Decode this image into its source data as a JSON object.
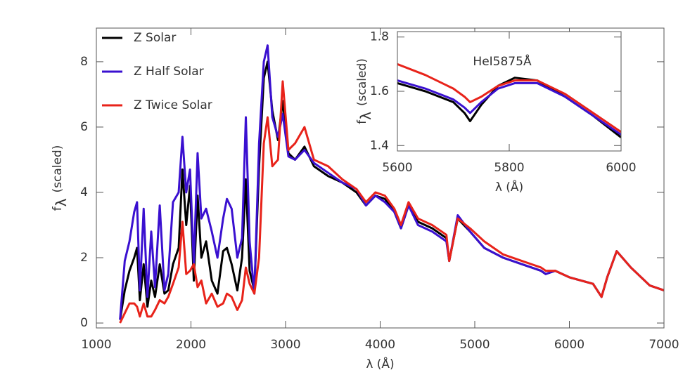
{
  "chart_data": [
    {
      "type": "line",
      "x_label": "λ (Å)",
      "y_label": {
        "symbol": "f",
        "subscript": "λ",
        "text": "(scaled)"
      },
      "xlim": [
        1000,
        7000
      ],
      "xticks": [
        1000,
        2000,
        3000,
        4000,
        5000,
        6000,
        7000
      ],
      "ylim": [
        -0.15,
        9.03
      ],
      "yticks": [
        0,
        2,
        4,
        6,
        8
      ],
      "legend": "upper left",
      "x": [
        1250,
        1300,
        1350,
        1400,
        1430,
        1460,
        1500,
        1540,
        1580,
        1620,
        1670,
        1720,
        1760,
        1810,
        1870,
        1910,
        1950,
        1990,
        2030,
        2070,
        2110,
        2160,
        2220,
        2280,
        2340,
        2380,
        2430,
        2490,
        2540,
        2580,
        2620,
        2670,
        2720,
        2770,
        2810,
        2860,
        2920,
        2970,
        3030,
        3100,
        3200,
        3300,
        3450,
        3600,
        3750,
        3850,
        3950,
        4050,
        4150,
        4220,
        4300,
        4400,
        4550,
        4700,
        4730,
        4820,
        4950,
        5100,
        5300,
        5500,
        5700,
        5750,
        5850,
        6000,
        6250,
        6340,
        6400,
        6500,
        6650,
        6850,
        7000
      ],
      "series": [
        {
          "name": "Z Solar",
          "color": "#000000",
          "values": [
            0.1,
            1.0,
            1.6,
            2.0,
            2.3,
            0.7,
            1.8,
            0.5,
            1.3,
            0.8,
            1.8,
            0.9,
            1.0,
            1.8,
            2.3,
            4.7,
            3.0,
            4.2,
            1.3,
            3.9,
            2.0,
            2.5,
            1.3,
            0.9,
            2.2,
            2.3,
            1.8,
            1.0,
            2.0,
            4.4,
            1.6,
            1.0,
            4.8,
            7.5,
            8.0,
            6.5,
            5.6,
            6.8,
            5.2,
            5.0,
            5.4,
            4.8,
            4.5,
            4.3,
            4.0,
            3.6,
            3.9,
            3.8,
            3.4,
            2.9,
            3.6,
            3.1,
            2.9,
            2.6,
            1.9,
            3.2,
            2.8,
            2.3,
            2.0,
            1.8,
            1.6,
            1.5,
            1.6,
            1.4,
            1.2,
            0.8,
            1.4,
            2.2,
            1.7,
            1.15,
            1.0
          ]
        },
        {
          "name": "Z Half Solar",
          "color": "#3a10d0",
          "values": [
            0.1,
            1.9,
            2.5,
            3.4,
            3.7,
            1.0,
            3.5,
            0.8,
            2.8,
            1.1,
            3.6,
            1.0,
            1.5,
            3.7,
            4.0,
            5.7,
            4.0,
            4.7,
            1.8,
            5.2,
            3.2,
            3.5,
            2.8,
            2.0,
            3.2,
            3.8,
            3.5,
            2.0,
            2.6,
            6.3,
            2.5,
            0.9,
            5.5,
            8.0,
            8.5,
            6.3,
            5.7,
            6.4,
            5.1,
            5.0,
            5.3,
            4.9,
            4.6,
            4.3,
            4.1,
            3.6,
            3.9,
            3.7,
            3.4,
            2.9,
            3.6,
            3.0,
            2.8,
            2.5,
            1.9,
            3.3,
            2.8,
            2.3,
            2.0,
            1.8,
            1.6,
            1.5,
            1.6,
            1.4,
            1.2,
            0.8,
            1.4,
            2.2,
            1.7,
            1.15,
            1.0
          ]
        },
        {
          "name": "Z Twice Solar",
          "color": "#e8231a",
          "values": [
            0.0,
            0.3,
            0.6,
            0.6,
            0.5,
            0.2,
            0.6,
            0.2,
            0.2,
            0.4,
            0.7,
            0.6,
            0.8,
            1.2,
            1.7,
            3.1,
            1.5,
            1.6,
            1.8,
            1.1,
            1.3,
            0.6,
            0.9,
            0.5,
            0.6,
            0.9,
            0.8,
            0.4,
            0.7,
            1.7,
            1.2,
            0.9,
            2.0,
            5.5,
            6.3,
            4.8,
            5.0,
            7.4,
            5.3,
            5.5,
            6.0,
            5.0,
            4.8,
            4.4,
            4.1,
            3.7,
            4.0,
            3.9,
            3.5,
            3.0,
            3.7,
            3.2,
            3.0,
            2.7,
            1.9,
            3.2,
            2.9,
            2.5,
            2.1,
            1.9,
            1.7,
            1.6,
            1.6,
            1.4,
            1.2,
            0.8,
            1.4,
            2.2,
            1.7,
            1.15,
            1.0
          ]
        }
      ]
    },
    {
      "type": "line",
      "x_label": "λ (Å)",
      "y_label": {
        "symbol": "f",
        "subscript": "λ",
        "text": "(scaled)"
      },
      "annotation": "HeI5875Å",
      "xlim": [
        5600,
        6000
      ],
      "xticks": [
        5600,
        5800,
        6000
      ],
      "ylim": [
        1.38,
        1.82
      ],
      "yticks": [
        1.4,
        1.6,
        1.8
      ],
      "x": [
        5600,
        5650,
        5700,
        5720,
        5730,
        5750,
        5780,
        5810,
        5850,
        5900,
        5950,
        6000
      ],
      "series": [
        {
          "color": "#000000",
          "values": [
            1.63,
            1.6,
            1.56,
            1.52,
            1.49,
            1.55,
            1.62,
            1.65,
            1.64,
            1.58,
            1.51,
            1.43
          ]
        },
        {
          "color": "#3a10d0",
          "values": [
            1.64,
            1.61,
            1.57,
            1.54,
            1.52,
            1.56,
            1.61,
            1.63,
            1.63,
            1.58,
            1.51,
            1.44
          ]
        },
        {
          "color": "#e8231a",
          "values": [
            1.7,
            1.66,
            1.61,
            1.58,
            1.56,
            1.58,
            1.62,
            1.64,
            1.64,
            1.59,
            1.52,
            1.45
          ]
        }
      ]
    }
  ]
}
